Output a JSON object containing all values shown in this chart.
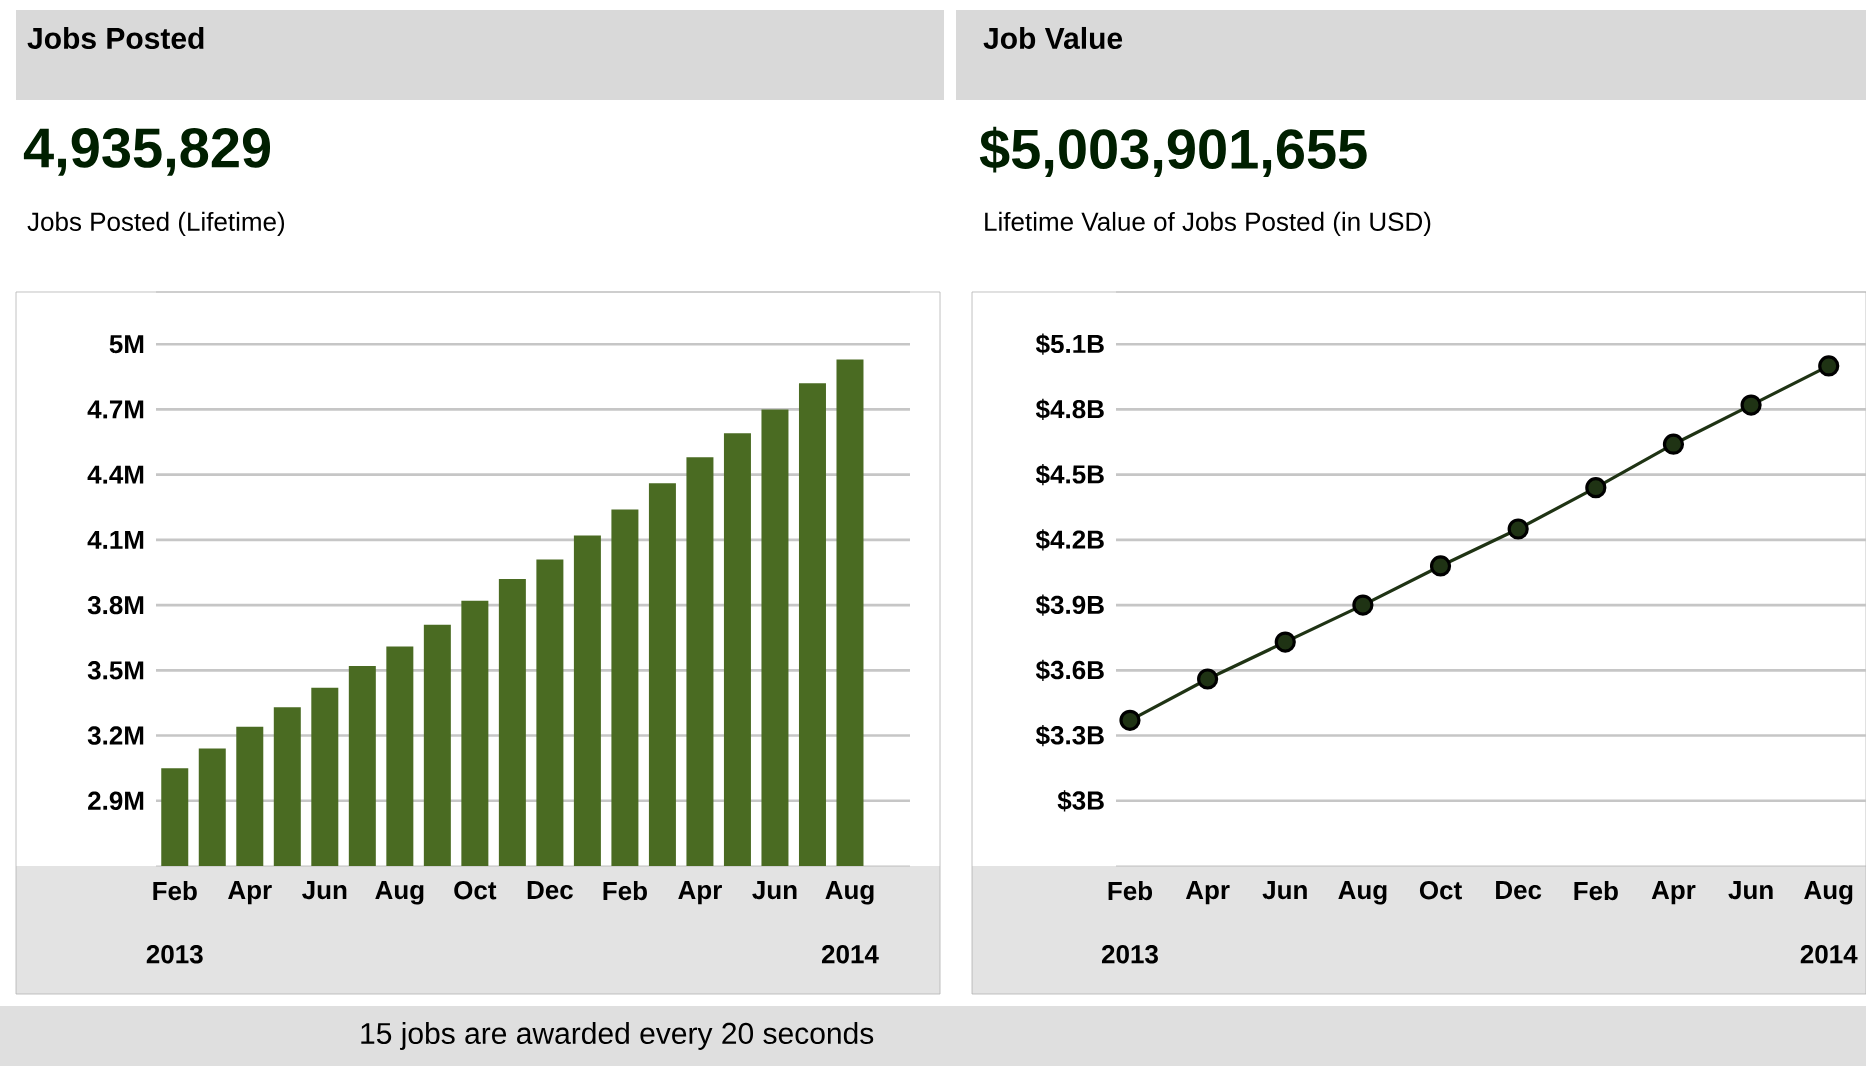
{
  "chart_data": [
    {
      "type": "bar",
      "title": "Jobs Posted",
      "subtitle": "4,935,829",
      "annotations": [
        "Jobs Posted (Lifetime)",
        "2013",
        "2014",
        "15 jobs are awarded every 20 seconds"
      ],
      "categories": [
        "Feb",
        null,
        "Apr",
        null,
        "Jun",
        null,
        "Aug",
        null,
        "Oct",
        null,
        "Dec",
        null,
        "Feb",
        null,
        "Apr",
        null,
        "Jun",
        null,
        "Aug"
      ],
      "values": [
        3.05,
        3.14,
        3.24,
        3.33,
        3.42,
        3.52,
        3.61,
        3.71,
        3.82,
        3.92,
        4.01,
        4.12,
        4.24,
        4.36,
        4.48,
        4.59,
        4.7,
        4.82,
        4.93
      ],
      "color": "#4a6b22",
      "ylim": [
        2.6,
        5.24
      ],
      "yticks": [
        {
          "value": 2.9,
          "label": "2.9M"
        },
        {
          "value": 3.2,
          "label": "3.2M"
        },
        {
          "value": 3.5,
          "label": "3.5M"
        },
        {
          "value": 3.8,
          "label": "3.8M"
        },
        {
          "value": 4.1,
          "label": "4.1M"
        },
        {
          "value": 4.4,
          "label": "4.4M"
        },
        {
          "value": 4.7,
          "label": "4.7M"
        },
        {
          "value": 5,
          "label": "5M"
        }
      ],
      "grid": "y"
    },
    {
      "type": "line",
      "title": "Job Value",
      "subtitle": "$5,003,901,655",
      "annotations": [
        "Lifetime Value of Jobs Posted (in USD)",
        "2013",
        "2014"
      ],
      "categories": [
        "Feb",
        "Apr",
        "Jun",
        "Aug",
        "Oct",
        "Dec",
        "Feb",
        "Apr",
        "Jun",
        "Aug"
      ],
      "values": [
        3.37,
        3.56,
        3.73,
        3.9,
        4.08,
        4.25,
        4.44,
        4.64,
        4.82,
        5.0
      ],
      "color": "#1f3314",
      "marker": "circle",
      "ylim": [
        2.7,
        5.34
      ],
      "yticks": [
        {
          "value": 3,
          "label": "$3B"
        },
        {
          "value": 3.3,
          "label": "$3.3B"
        },
        {
          "value": 3.6,
          "label": "$3.6B"
        },
        {
          "value": 3.9,
          "label": "$3.9B"
        },
        {
          "value": 4.2,
          "label": "$4.2B"
        },
        {
          "value": 4.5,
          "label": "$4.5B"
        },
        {
          "value": 4.8,
          "label": "$4.8B"
        },
        {
          "value": 5.1,
          "label": "$5.1B"
        }
      ],
      "grid": "y"
    }
  ]
}
